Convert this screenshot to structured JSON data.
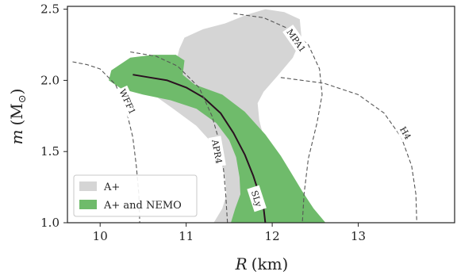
{
  "chart_data": {
    "type": "area",
    "xlabel_var": "R",
    "xlabel_unit": "(km)",
    "ylabel_var": "m",
    "ylabel_unit": "(M",
    "ylabel_sun": "⊙",
    "ylabel_close": ")",
    "xlim": [
      9.62,
      14.12
    ],
    "ylim": [
      1.0,
      2.52
    ],
    "xticks": [
      10,
      11,
      12,
      13
    ],
    "xtick_labels": [
      "10",
      "11",
      "12",
      "13"
    ],
    "yticks": [
      1.0,
      1.5,
      2.0,
      2.5
    ],
    "ytick_labels": [
      "1.0",
      "1.5",
      "2.0",
      "2.5"
    ],
    "colors": {
      "a_plus": "#d5d5d5",
      "a_plus_nemo": "#6fbb6b",
      "sly": "#2a1020",
      "eos_dashed": "#555555"
    },
    "legend": {
      "placement": "lower-left",
      "entries": [
        {
          "label": "A+",
          "color": "#d5d5d5"
        },
        {
          "label": "A+ and NEMO",
          "color": "#6fbb6b"
        }
      ]
    },
    "regions": [
      {
        "name": "A+",
        "color": "#d5d5d5",
        "points": [
          [
            11.92,
            2.5
          ],
          [
            12.14,
            2.48
          ],
          [
            12.32,
            2.43
          ],
          [
            12.34,
            2.3
          ],
          [
            12.24,
            2.16
          ],
          [
            12.06,
            2.03
          ],
          [
            11.9,
            1.92
          ],
          [
            11.83,
            1.84
          ],
          [
            11.85,
            1.72
          ],
          [
            11.9,
            1.6
          ],
          [
            11.98,
            1.48
          ],
          [
            12.07,
            1.36
          ],
          [
            12.12,
            1.25
          ],
          [
            12.14,
            1.1
          ],
          [
            12.12,
            1.0
          ],
          [
            11.32,
            1.0
          ],
          [
            11.42,
            1.1
          ],
          [
            11.47,
            1.2
          ],
          [
            11.45,
            1.32
          ],
          [
            11.4,
            1.44
          ],
          [
            11.3,
            1.56
          ],
          [
            11.12,
            1.68
          ],
          [
            10.85,
            1.8
          ],
          [
            10.62,
            1.9
          ],
          [
            10.55,
            1.98
          ],
          [
            10.72,
            2.06
          ],
          [
            10.88,
            2.12
          ],
          [
            10.92,
            2.22
          ],
          [
            10.98,
            2.3
          ],
          [
            11.2,
            2.36
          ],
          [
            11.45,
            2.4
          ],
          [
            11.7,
            2.46
          ]
        ]
      },
      {
        "name": "A+ and NEMO",
        "color": "#6fbb6b",
        "points": [
          [
            10.35,
            2.16
          ],
          [
            10.62,
            2.18
          ],
          [
            10.88,
            2.18
          ],
          [
            10.98,
            2.14
          ],
          [
            10.96,
            2.04
          ],
          [
            11.1,
            1.97
          ],
          [
            11.42,
            1.9
          ],
          [
            11.68,
            1.78
          ],
          [
            11.92,
            1.62
          ],
          [
            12.1,
            1.47
          ],
          [
            12.22,
            1.35
          ],
          [
            12.35,
            1.22
          ],
          [
            12.48,
            1.1
          ],
          [
            12.62,
            1.0
          ],
          [
            11.52,
            1.0
          ],
          [
            11.57,
            1.1
          ],
          [
            11.63,
            1.2
          ],
          [
            11.62,
            1.32
          ],
          [
            11.58,
            1.46
          ],
          [
            11.5,
            1.58
          ],
          [
            11.35,
            1.7
          ],
          [
            11.12,
            1.8
          ],
          [
            10.82,
            1.86
          ],
          [
            10.5,
            1.9
          ],
          [
            10.25,
            1.94
          ],
          [
            10.1,
            2.0
          ],
          [
            10.13,
            2.07
          ]
        ]
      }
    ],
    "series": [
      {
        "name": "SLy",
        "style": "solid",
        "color": "#2a1020",
        "points": [
          [
            10.38,
            2.04
          ],
          [
            10.58,
            2.02
          ],
          [
            10.78,
            2.0
          ],
          [
            11.0,
            1.95
          ],
          [
            11.2,
            1.88
          ],
          [
            11.4,
            1.77
          ],
          [
            11.55,
            1.63
          ],
          [
            11.68,
            1.48
          ],
          [
            11.78,
            1.33
          ],
          [
            11.85,
            1.2
          ],
          [
            11.9,
            1.1
          ],
          [
            11.92,
            1.0
          ]
        ]
      },
      {
        "name": "WFF1",
        "style": "dashed",
        "color": "#555555",
        "points": [
          [
            9.68,
            2.13
          ],
          [
            9.85,
            2.11
          ],
          [
            10.0,
            2.08
          ],
          [
            10.18,
            1.97
          ],
          [
            10.3,
            1.8
          ],
          [
            10.38,
            1.6
          ],
          [
            10.42,
            1.4
          ],
          [
            10.45,
            1.2
          ],
          [
            10.46,
            1.0
          ]
        ]
      },
      {
        "name": "APR4",
        "style": "dashed",
        "color": "#555555",
        "points": [
          [
            10.35,
            2.2
          ],
          [
            10.65,
            2.17
          ],
          [
            10.9,
            2.1
          ],
          [
            11.15,
            1.95
          ],
          [
            11.3,
            1.75
          ],
          [
            11.38,
            1.58
          ],
          [
            11.43,
            1.4
          ],
          [
            11.46,
            1.2
          ],
          [
            11.48,
            1.0
          ]
        ]
      },
      {
        "name": "MPA1",
        "style": "dashed",
        "color": "#555555",
        "points": [
          [
            11.55,
            2.47
          ],
          [
            11.9,
            2.44
          ],
          [
            12.2,
            2.36
          ],
          [
            12.42,
            2.25
          ],
          [
            12.55,
            2.08
          ],
          [
            12.58,
            1.9
          ],
          [
            12.52,
            1.7
          ],
          [
            12.42,
            1.45
          ],
          [
            12.37,
            1.2
          ],
          [
            12.35,
            1.0
          ]
        ]
      },
      {
        "name": "H4",
        "style": "dashed",
        "color": "#555555",
        "points": [
          [
            12.1,
            2.02
          ],
          [
            12.6,
            1.98
          ],
          [
            13.0,
            1.9
          ],
          [
            13.3,
            1.77
          ],
          [
            13.5,
            1.6
          ],
          [
            13.62,
            1.4
          ],
          [
            13.67,
            1.2
          ],
          [
            13.68,
            1.0
          ]
        ]
      }
    ],
    "curve_labels": [
      {
        "name": "MPA1",
        "text": "MPA1",
        "x": 12.28,
        "y": 2.28,
        "angle": 55
      },
      {
        "name": "WFF1",
        "text": "WFF1",
        "x": 10.32,
        "y": 1.85,
        "angle": 65
      },
      {
        "name": "APR4",
        "text": "APR4",
        "x": 11.36,
        "y": 1.5,
        "angle": 80
      },
      {
        "name": "H4",
        "text": "H4",
        "x": 13.55,
        "y": 1.63,
        "angle": 60
      },
      {
        "name": "SLy",
        "text": "SLy",
        "x": 11.82,
        "y": 1.17,
        "angle": 72
      }
    ]
  }
}
